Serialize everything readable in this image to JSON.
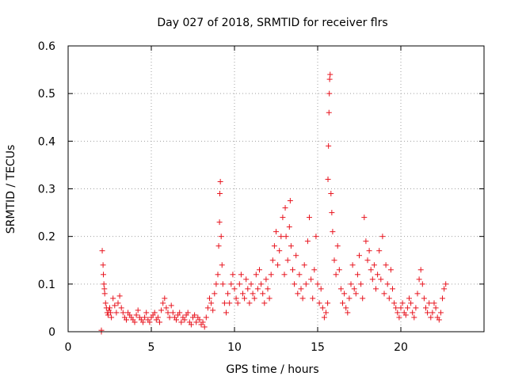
{
  "chart_data": {
    "type": "scatter",
    "title": "Day 027 of 2018, SRMTID for receiver flrs",
    "xlabel": "GPS time / hours",
    "ylabel": "SRMTID / TECUs",
    "xlim": [
      0,
      25
    ],
    "ylim": [
      0,
      0.6
    ],
    "xticks": [
      0,
      5,
      10,
      15,
      20
    ],
    "yticks": [
      0,
      0.1,
      0.2,
      0.3,
      0.4,
      0.5,
      0.6
    ],
    "xtick_labels": [
      "0",
      "5",
      "10",
      "15",
      "20"
    ],
    "ytick_labels": [
      "0",
      "0.1",
      "0.2",
      "0.3",
      "0.4",
      "0.5",
      "0.6"
    ],
    "grid": true,
    "marker": "+",
    "series_color": "#e8141e",
    "series": [
      {
        "name": "SRMTID",
        "x": [
          2.0,
          2.0,
          2.05,
          2.1,
          2.12,
          2.15,
          2.18,
          2.2,
          2.25,
          2.3,
          2.35,
          2.4,
          2.45,
          2.5,
          2.55,
          2.6,
          2.7,
          2.8,
          2.9,
          3.0,
          3.1,
          3.2,
          3.3,
          3.4,
          3.5,
          3.6,
          3.7,
          3.8,
          3.9,
          4.0,
          4.1,
          4.2,
          4.3,
          4.4,
          4.5,
          4.6,
          4.7,
          4.8,
          4.9,
          5.0,
          5.1,
          5.2,
          5.3,
          5.4,
          5.5,
          5.6,
          5.7,
          5.8,
          5.9,
          6.0,
          6.1,
          6.2,
          6.3,
          6.4,
          6.5,
          6.6,
          6.7,
          6.8,
          6.9,
          7.0,
          7.1,
          7.2,
          7.3,
          7.4,
          7.5,
          7.6,
          7.7,
          7.8,
          7.9,
          8.0,
          8.1,
          8.2,
          8.3,
          8.4,
          8.5,
          8.6,
          8.7,
          8.8,
          8.9,
          9.0,
          9.05,
          9.1,
          9.12,
          9.15,
          9.2,
          9.25,
          9.3,
          9.4,
          9.5,
          9.6,
          9.7,
          9.8,
          9.9,
          10.0,
          10.1,
          10.2,
          10.3,
          10.4,
          10.5,
          10.6,
          10.7,
          10.8,
          10.9,
          11.0,
          11.1,
          11.2,
          11.3,
          11.4,
          11.5,
          11.6,
          11.7,
          11.8,
          11.9,
          12.0,
          12.1,
          12.2,
          12.3,
          12.4,
          12.5,
          12.6,
          12.7,
          12.8,
          12.9,
          13.0,
          13.05,
          13.1,
          13.2,
          13.3,
          13.35,
          13.4,
          13.5,
          13.6,
          13.7,
          13.8,
          13.9,
          14.0,
          14.1,
          14.2,
          14.3,
          14.4,
          14.5,
          14.6,
          14.7,
          14.8,
          14.9,
          15.0,
          15.1,
          15.2,
          15.3,
          15.4,
          15.5,
          15.6,
          15.62,
          15.65,
          15.68,
          15.7,
          15.72,
          15.75,
          15.8,
          15.85,
          15.9,
          16.0,
          16.1,
          16.2,
          16.3,
          16.4,
          16.5,
          16.6,
          16.7,
          16.8,
          16.9,
          17.0,
          17.1,
          17.2,
          17.3,
          17.4,
          17.5,
          17.6,
          17.7,
          17.8,
          17.9,
          18.0,
          18.1,
          18.2,
          18.3,
          18.4,
          18.5,
          18.6,
          18.7,
          18.8,
          18.9,
          19.0,
          19.1,
          19.2,
          19.3,
          19.4,
          19.5,
          19.6,
          19.7,
          19.8,
          19.9,
          20.0,
          20.1,
          20.2,
          20.3,
          20.4,
          20.5,
          20.6,
          20.7,
          20.8,
          20.9,
          21.0,
          21.1,
          21.2,
          21.3,
          21.4,
          21.5,
          21.6,
          21.7,
          21.8,
          21.9,
          22.0,
          22.1,
          22.2,
          22.3,
          22.4,
          22.5,
          22.6,
          22.7
        ],
        "y": [
          0.0,
          0.003,
          0.17,
          0.14,
          0.12,
          0.1,
          0.09,
          0.08,
          0.06,
          0.05,
          0.04,
          0.035,
          0.045,
          0.05,
          0.04,
          0.03,
          0.07,
          0.055,
          0.04,
          0.06,
          0.075,
          0.05,
          0.04,
          0.03,
          0.025,
          0.04,
          0.035,
          0.03,
          0.025,
          0.02,
          0.035,
          0.045,
          0.03,
          0.025,
          0.02,
          0.03,
          0.04,
          0.025,
          0.02,
          0.03,
          0.035,
          0.04,
          0.025,
          0.03,
          0.02,
          0.045,
          0.06,
          0.07,
          0.05,
          0.04,
          0.03,
          0.055,
          0.04,
          0.03,
          0.025,
          0.035,
          0.04,
          0.02,
          0.03,
          0.025,
          0.035,
          0.04,
          0.02,
          0.015,
          0.03,
          0.035,
          0.02,
          0.03,
          0.025,
          0.015,
          0.02,
          0.01,
          0.03,
          0.05,
          0.07,
          0.06,
          0.045,
          0.08,
          0.1,
          0.12,
          0.18,
          0.23,
          0.29,
          0.315,
          0.2,
          0.14,
          0.1,
          0.06,
          0.04,
          0.08,
          0.06,
          0.1,
          0.12,
          0.09,
          0.07,
          0.06,
          0.1,
          0.12,
          0.08,
          0.07,
          0.11,
          0.09,
          0.06,
          0.1,
          0.08,
          0.07,
          0.12,
          0.09,
          0.13,
          0.1,
          0.08,
          0.06,
          0.11,
          0.09,
          0.07,
          0.12,
          0.15,
          0.18,
          0.21,
          0.14,
          0.17,
          0.2,
          0.24,
          0.12,
          0.26,
          0.2,
          0.15,
          0.22,
          0.275,
          0.18,
          0.13,
          0.1,
          0.16,
          0.08,
          0.12,
          0.09,
          0.07,
          0.14,
          0.1,
          0.19,
          0.24,
          0.11,
          0.07,
          0.13,
          0.2,
          0.1,
          0.06,
          0.09,
          0.05,
          0.03,
          0.04,
          0.06,
          0.32,
          0.39,
          0.46,
          0.5,
          0.53,
          0.54,
          0.29,
          0.25,
          0.21,
          0.15,
          0.12,
          0.18,
          0.13,
          0.09,
          0.06,
          0.08,
          0.05,
          0.04,
          0.07,
          0.1,
          0.14,
          0.09,
          0.08,
          0.12,
          0.16,
          0.1,
          0.07,
          0.24,
          0.19,
          0.15,
          0.17,
          0.13,
          0.11,
          0.14,
          0.09,
          0.12,
          0.17,
          0.11,
          0.2,
          0.08,
          0.14,
          0.1,
          0.07,
          0.13,
          0.09,
          0.06,
          0.05,
          0.04,
          0.03,
          0.05,
          0.06,
          0.04,
          0.035,
          0.05,
          0.07,
          0.06,
          0.04,
          0.03,
          0.05,
          0.08,
          0.11,
          0.13,
          0.1,
          0.07,
          0.05,
          0.04,
          0.06,
          0.03,
          0.04,
          0.06,
          0.05,
          0.03,
          0.025,
          0.04,
          0.07,
          0.09,
          0.1
        ]
      }
    ]
  }
}
